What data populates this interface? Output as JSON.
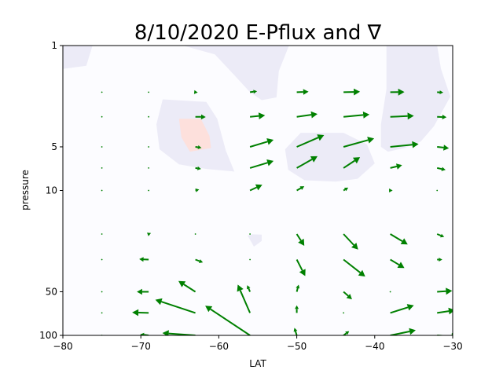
{
  "chart_data": {
    "type": "quiver",
    "title": "8/10/2020 E-Pflux and ∇",
    "xlabel": "LAT",
    "ylabel": "pressure",
    "xlim": [
      -80,
      -30
    ],
    "ylim": [
      100,
      1
    ],
    "yscale": "log",
    "x_ticks": [
      -80,
      -70,
      -60,
      -50,
      -40,
      -30
    ],
    "x_tick_labels": [
      "−80",
      "−70",
      "−60",
      "−50",
      "−40",
      "−30"
    ],
    "y_ticks": [
      1,
      5,
      10,
      50,
      100
    ],
    "y_tick_labels": [
      "1",
      "5",
      "10",
      "50",
      "100"
    ],
    "grid": false,
    "colors": {
      "arrow": "#008000",
      "contour_negative": "#ecebf7",
      "contour_positive": "#fde0dc",
      "background": "#fcfcff"
    },
    "contour_regions": [
      {
        "sign": "negative",
        "points": [
          [
            -80,
            1
          ],
          [
            -76.2,
            1
          ],
          [
            -77,
            1.38
          ],
          [
            -80,
            1.45
          ]
        ]
      },
      {
        "sign": "negative",
        "points": [
          [
            -64.6,
            1
          ],
          [
            -60.5,
            1.15
          ],
          [
            -58,
            1.6
          ],
          [
            -56,
            2.1
          ],
          [
            -54.5,
            2.38
          ],
          [
            -52.6,
            2.28
          ],
          [
            -52.3,
            1.5
          ],
          [
            -51,
            1
          ],
          [
            -64.6,
            1
          ]
        ]
      },
      {
        "sign": "negative",
        "points": [
          [
            -67.2,
            2.35
          ],
          [
            -61.6,
            2.45
          ],
          [
            -60.2,
            3.2
          ],
          [
            -59.1,
            5.3
          ],
          [
            -58,
            7.4
          ],
          [
            -61.6,
            7.1
          ],
          [
            -65.1,
            6.6
          ],
          [
            -67.6,
            5.2
          ],
          [
            -68,
            3.5
          ],
          [
            -67.2,
            2.35
          ]
        ]
      },
      {
        "sign": "positive",
        "points": [
          [
            -65.1,
            3.2
          ],
          [
            -62.3,
            3.2
          ],
          [
            -61.2,
            4.2
          ],
          [
            -61,
            5.1
          ],
          [
            -63.7,
            5.4
          ],
          [
            -64.8,
            4.3
          ],
          [
            -65.1,
            3.2
          ]
        ]
      },
      {
        "sign": "negative",
        "points": [
          [
            -51.5,
            5.2
          ],
          [
            -49.5,
            4.0
          ],
          [
            -44,
            4.0
          ],
          [
            -41,
            4.8
          ],
          [
            -40,
            6.5
          ],
          [
            -42.2,
            8.3
          ],
          [
            -45,
            8.7
          ],
          [
            -49,
            8.5
          ],
          [
            -51.1,
            7.2
          ],
          [
            -51.5,
            5.2
          ]
        ]
      },
      {
        "sign": "negative",
        "points": [
          [
            -38.5,
            1
          ],
          [
            -32,
            1
          ],
          [
            -31.5,
            1.45
          ],
          [
            -30.3,
            2.25
          ],
          [
            -32.4,
            3.6
          ],
          [
            -34.1,
            4.6
          ],
          [
            -36.2,
            5.1
          ],
          [
            -38.3,
            5.4
          ],
          [
            -39.2,
            5.0
          ],
          [
            -39.2,
            3.5
          ],
          [
            -38.5,
            2
          ],
          [
            -38.5,
            1
          ]
        ]
      },
      {
        "sign": "negative",
        "points": [
          [
            -56.3,
            20.5
          ],
          [
            -55.7,
            20.1
          ],
          [
            -54.5,
            20.2
          ],
          [
            -54.5,
            22.3
          ],
          [
            -55.5,
            24.4
          ],
          [
            -56.3,
            20.5
          ]
        ]
      }
    ],
    "vectors": [
      {
        "x": -75,
        "y": 2.1,
        "u": 0,
        "v": 0
      },
      {
        "x": -69,
        "y": 2.1,
        "u": 0,
        "v": 0
      },
      {
        "x": -63,
        "y": 2.1,
        "u": 0.5,
        "v": -0.05
      },
      {
        "x": -56,
        "y": 2.1,
        "u": 1.5,
        "v": 0.2
      },
      {
        "x": -50,
        "y": 2.1,
        "u": 2.5,
        "v": 0.1
      },
      {
        "x": -44,
        "y": 2.1,
        "u": 3.5,
        "v": 0.1
      },
      {
        "x": -38,
        "y": 2.1,
        "u": 3,
        "v": 0.05
      },
      {
        "x": -32,
        "y": 2.1,
        "u": 1.3,
        "v": -0.05
      },
      {
        "x": -75,
        "y": 3.1,
        "u": 0,
        "v": 0
      },
      {
        "x": -69,
        "y": 3.1,
        "u": 0,
        "v": 0
      },
      {
        "x": -63,
        "y": 3.1,
        "u": 2.2,
        "v": -0.05
      },
      {
        "x": -56,
        "y": 3.1,
        "u": 3.2,
        "v": 0.3
      },
      {
        "x": -50,
        "y": 3.1,
        "u": 4.4,
        "v": 0.6
      },
      {
        "x": -44,
        "y": 3.1,
        "u": 5.5,
        "v": 0.5
      },
      {
        "x": -38,
        "y": 3.1,
        "u": 5,
        "v": 0.2
      },
      {
        "x": -32,
        "y": 3.1,
        "u": 2,
        "v": -0.1
      },
      {
        "x": -75,
        "y": 5.0,
        "u": 0,
        "v": 0
      },
      {
        "x": -69,
        "y": 5.0,
        "u": 0,
        "v": 0
      },
      {
        "x": -63,
        "y": 5.0,
        "u": 1.3,
        "v": -0.2
      },
      {
        "x": -56,
        "y": 5.0,
        "u": 5,
        "v": 1.5
      },
      {
        "x": -50,
        "y": 5.0,
        "u": 5.8,
        "v": 2.5
      },
      {
        "x": -44,
        "y": 5.0,
        "u": 6.5,
        "v": 1.8
      },
      {
        "x": -38,
        "y": 5.0,
        "u": 6,
        "v": 0.6
      },
      {
        "x": -32,
        "y": 5.0,
        "u": 2.5,
        "v": -0.3
      },
      {
        "x": -75,
        "y": 7.0,
        "u": 0,
        "v": 0
      },
      {
        "x": -69,
        "y": 7.0,
        "u": 0,
        "v": 0
      },
      {
        "x": -63,
        "y": 7.0,
        "u": 1.2,
        "v": -0.2
      },
      {
        "x": -56,
        "y": 7.0,
        "u": 5,
        "v": 1.5
      },
      {
        "x": -50,
        "y": 7.0,
        "u": 4.4,
        "v": 2.5
      },
      {
        "x": -44,
        "y": 7.0,
        "u": 3.5,
        "v": 2.3
      },
      {
        "x": -38,
        "y": 7.0,
        "u": 2.5,
        "v": 0.6
      },
      {
        "x": -32,
        "y": 7.0,
        "u": 1.8,
        "v": -0.4
      },
      {
        "x": -75,
        "y": 10.0,
        "u": 0,
        "v": 0
      },
      {
        "x": -69,
        "y": 10.0,
        "u": 0,
        "v": 0
      },
      {
        "x": -63,
        "y": 10.0,
        "u": 0.8,
        "v": 0.2
      },
      {
        "x": -56,
        "y": 10.0,
        "u": 2.6,
        "v": 1.2
      },
      {
        "x": -50,
        "y": 10.0,
        "u": 1.6,
        "v": 0.9
      },
      {
        "x": -44,
        "y": 10.0,
        "u": 1,
        "v": 0.6
      },
      {
        "x": -38,
        "y": 10.0,
        "u": 0.5,
        "v": 0
      },
      {
        "x": -32,
        "y": 10.0,
        "u": 0,
        "v": 0
      },
      {
        "x": -75,
        "y": 20.0,
        "u": 0,
        "v": 0
      },
      {
        "x": -69,
        "y": 20.0,
        "u": 0.5,
        "v": 0.2
      },
      {
        "x": -63,
        "y": 20.0,
        "u": 0,
        "v": 0
      },
      {
        "x": -56,
        "y": 20.0,
        "u": 0,
        "v": 0
      },
      {
        "x": -50,
        "y": 20.0,
        "u": 1.6,
        "v": -2.5
      },
      {
        "x": -44,
        "y": 20.0,
        "u": 3.1,
        "v": -3.3
      },
      {
        "x": -38,
        "y": 20.0,
        "u": 3.7,
        "v": -2.2
      },
      {
        "x": -32,
        "y": 20.0,
        "u": 1.5,
        "v": -0.6
      },
      {
        "x": -75,
        "y": 30.0,
        "u": 0,
        "v": 0
      },
      {
        "x": -69,
        "y": 30.0,
        "u": -2,
        "v": 0.1
      },
      {
        "x": -63,
        "y": 30.0,
        "u": 1.6,
        "v": -0.6
      },
      {
        "x": -56,
        "y": 30.0,
        "u": 0,
        "v": 0
      },
      {
        "x": -50,
        "y": 30.0,
        "u": 1.8,
        "v": -3.5
      },
      {
        "x": -44,
        "y": 30.0,
        "u": 4.6,
        "v": -3.6
      },
      {
        "x": -38,
        "y": 30.0,
        "u": 3,
        "v": -1.8
      },
      {
        "x": -32,
        "y": 30.0,
        "u": 1.1,
        "v": 0
      },
      {
        "x": -75,
        "y": 50.0,
        "u": 0,
        "v": 0
      },
      {
        "x": -69,
        "y": 50.0,
        "u": -2.5,
        "v": 0
      },
      {
        "x": -63,
        "y": 50.0,
        "u": -3.6,
        "v": 2.3
      },
      {
        "x": -56,
        "y": 50.0,
        "u": -0.6,
        "v": 1.4
      },
      {
        "x": -50,
        "y": 50.0,
        "u": 0.4,
        "v": 1.5
      },
      {
        "x": -44,
        "y": 50.0,
        "u": 1.8,
        "v": -1.6
      },
      {
        "x": -38,
        "y": 50.0,
        "u": 0,
        "v": 0
      },
      {
        "x": -32,
        "y": 50.0,
        "u": 3.2,
        "v": 0.2
      },
      {
        "x": -75,
        "y": 70.0,
        "u": 0,
        "v": 0
      },
      {
        "x": -69,
        "y": 70.0,
        "u": -3.5,
        "v": 0.1
      },
      {
        "x": -63,
        "y": 70.0,
        "u": -8.5,
        "v": 2.8
      },
      {
        "x": -56,
        "y": 70.0,
        "u": -2.6,
        "v": 6
      },
      {
        "x": -50,
        "y": 70.0,
        "u": 0,
        "v": 1.6
      },
      {
        "x": -44,
        "y": 70.0,
        "u": 0,
        "v": 0
      },
      {
        "x": -38,
        "y": 70.0,
        "u": 5,
        "v": 1.6
      },
      {
        "x": -32,
        "y": 70.0,
        "u": 3.8,
        "v": 0.6
      },
      {
        "x": -75,
        "y": 100.0,
        "u": 0,
        "v": 0
      },
      {
        "x": -69,
        "y": 100.0,
        "u": -1.8,
        "v": 0.2
      },
      {
        "x": -63,
        "y": 100.0,
        "u": -7,
        "v": 0.5
      },
      {
        "x": -56,
        "y": 100.0,
        "u": -9.5,
        "v": 6.3
      },
      {
        "x": -50,
        "y": 100.0,
        "u": -0.5,
        "v": 1.6
      },
      {
        "x": -44,
        "y": 100.0,
        "u": 1.2,
        "v": 0.9
      },
      {
        "x": -38,
        "y": 100.0,
        "u": 5.4,
        "v": 1.1
      },
      {
        "x": -32,
        "y": 100.0,
        "u": 4.4,
        "v": -0.3
      }
    ]
  }
}
